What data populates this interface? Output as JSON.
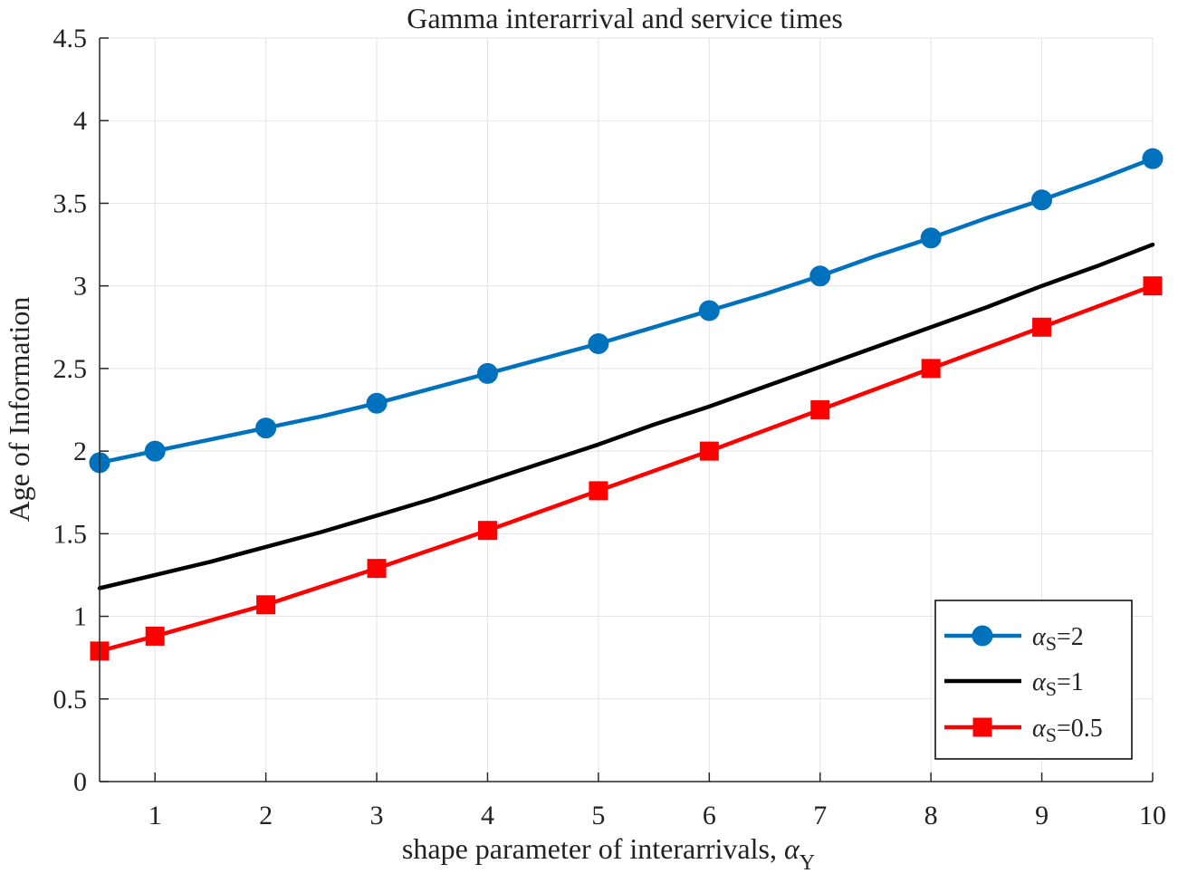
{
  "chart_data": {
    "type": "line",
    "title": "Gamma interarrival and service times",
    "xlabel": "shape parameter of interarrivals, ",
    "xlabel_symbol": "α",
    "xlabel_subscript": "Y",
    "ylabel": "Age of Information",
    "xlim": [
      0.5,
      10
    ],
    "ylim": [
      0,
      4.5
    ],
    "xticks": [
      1,
      2,
      3,
      4,
      5,
      6,
      7,
      8,
      9,
      10
    ],
    "yticks": [
      0,
      0.5,
      1,
      1.5,
      2,
      2.5,
      3,
      3.5,
      4,
      4.5
    ],
    "xtick_labels": [
      "1",
      "2",
      "3",
      "4",
      "5",
      "6",
      "7",
      "8",
      "9",
      "10"
    ],
    "ytick_labels": [
      "0",
      "0.5",
      "1",
      "1.5",
      "2",
      "2.5",
      "3",
      "3.5",
      "4",
      "4.5"
    ],
    "grid": true,
    "legend_position": "bottom-right",
    "series": [
      {
        "name": "=2",
        "legend_symbol": "α",
        "legend_subscript": "S",
        "color": "#0072BD",
        "marker": "circle",
        "x": [
          0.5,
          1,
          1.5,
          2,
          2.5,
          3,
          3.5,
          4,
          4.5,
          5,
          5.5,
          6,
          6.5,
          7,
          7.5,
          8,
          8.5,
          9,
          9.5,
          10
        ],
        "y": [
          1.93,
          2.0,
          2.07,
          2.14,
          2.21,
          2.29,
          2.38,
          2.47,
          2.56,
          2.65,
          2.75,
          2.85,
          2.95,
          3.06,
          3.18,
          3.29,
          3.41,
          3.52,
          3.64,
          3.77
        ],
        "marker_x": [
          0.5,
          1,
          2,
          3,
          4,
          5,
          6,
          7,
          8,
          9,
          10
        ],
        "marker_y": [
          1.93,
          2.0,
          2.14,
          2.29,
          2.47,
          2.65,
          2.85,
          3.06,
          3.29,
          3.52,
          3.77
        ]
      },
      {
        "name": "=1",
        "legend_symbol": "α",
        "legend_subscript": "S",
        "color": "#000000",
        "marker": "none",
        "x": [
          0.5,
          1,
          1.5,
          2,
          2.5,
          3,
          3.5,
          4,
          4.5,
          5,
          5.5,
          6,
          6.5,
          7,
          7.5,
          8,
          8.5,
          9,
          9.5,
          10
        ],
        "y": [
          1.17,
          1.25,
          1.33,
          1.42,
          1.51,
          1.61,
          1.71,
          1.82,
          1.93,
          2.04,
          2.16,
          2.27,
          2.39,
          2.51,
          2.63,
          2.75,
          2.87,
          3.0,
          3.12,
          3.25
        ],
        "marker_x": [],
        "marker_y": []
      },
      {
        "name": "=0.5",
        "legend_symbol": "α",
        "legend_subscript": "S",
        "color": "#FF0000",
        "marker": "square",
        "x": [
          0.5,
          1,
          2,
          3,
          4,
          5,
          6,
          7,
          8,
          9,
          10
        ],
        "y": [
          0.79,
          0.88,
          1.07,
          1.29,
          1.52,
          1.76,
          2.0,
          2.25,
          2.5,
          2.75,
          3.0
        ],
        "marker_x": [
          0.5,
          1,
          2,
          3,
          4,
          5,
          6,
          7,
          8,
          9,
          10
        ],
        "marker_y": [
          0.79,
          0.88,
          1.07,
          1.29,
          1.52,
          1.76,
          2.0,
          2.25,
          2.5,
          2.75,
          3.0
        ]
      }
    ]
  }
}
